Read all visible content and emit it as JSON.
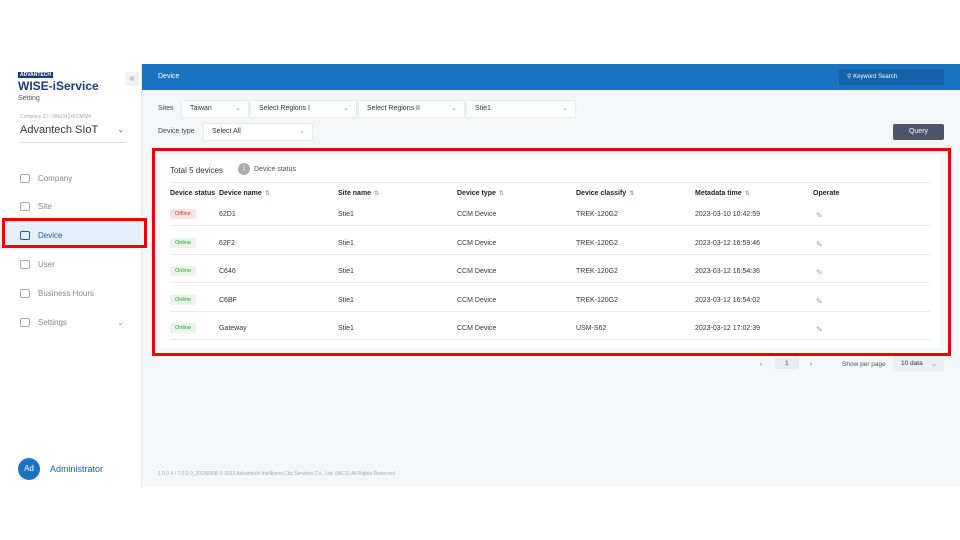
{
  "brand": {
    "small": "ADVANTECH",
    "title": "WISE-iService",
    "subtitle": "Setting"
  },
  "company": {
    "id_label": "Company ID : dWa342xFCMSM",
    "name": "Advantech SIoT"
  },
  "nav": [
    {
      "label": "Company",
      "icon": "building-icon"
    },
    {
      "label": "Site",
      "icon": "site-icon"
    },
    {
      "label": "Device",
      "icon": "monitor-icon",
      "active": true
    },
    {
      "label": "User",
      "icon": "user-icon"
    },
    {
      "label": "Business Hours",
      "icon": "calendar-icon"
    },
    {
      "label": "Settings",
      "icon": "gear-icon"
    }
  ],
  "user": {
    "initials": "Ad",
    "name": "Administrator"
  },
  "header": {
    "title": "Device",
    "search_placeholder": "Keyword Search"
  },
  "filters": {
    "sites_label": "Sites",
    "site": "Taiwan",
    "region1": "Select Regions I",
    "region2": "Select Regions II",
    "site_name": "Stie1",
    "device_type_label": "Device type",
    "device_type": "Select All",
    "query": "Query"
  },
  "table": {
    "total": "Total 5 devices",
    "status_info": "Device status",
    "columns": [
      "Device status",
      "Device name",
      "Site name",
      "Device type",
      "Device classify",
      "Metadata time",
      "Operate"
    ],
    "rows": [
      {
        "status": "Offline",
        "name": "62D1",
        "site": "Stie1",
        "type": "CCM Device",
        "classify": "TREK-120G2",
        "time": "2023-03-10 10:42:59"
      },
      {
        "status": "Online",
        "name": "62F2",
        "site": "Stie1",
        "type": "CCM Device",
        "classify": "TREK-120G2",
        "time": "2023-03-12 16:59:46"
      },
      {
        "status": "Online",
        "name": "C646",
        "site": "Stie1",
        "type": "CCM Device",
        "classify": "TREK-120G2",
        "time": "2023-03-12 16:54:36"
      },
      {
        "status": "Online",
        "name": "C6BF",
        "site": "Stie1",
        "type": "CCM Device",
        "classify": "TREK-120G2",
        "time": "2023-03-12 16:54:02"
      },
      {
        "status": "Online",
        "name": "Gateway",
        "site": "Stie1",
        "type": "CCM Device",
        "classify": "USM-S62",
        "time": "2023-03-12 17:02:39"
      }
    ]
  },
  "pagination": {
    "page": "1",
    "per_page_label": "Show per page",
    "per_page": "10 data"
  },
  "footer": "1.0.0.4 / 7.0.0.0_20230308 © 2022 Advantech Intelligent City Services Co., Ltd. (AiCS) All Rights Reserved.",
  "colors": {
    "primary": "#1a73c0",
    "highlight": "#e00000"
  }
}
